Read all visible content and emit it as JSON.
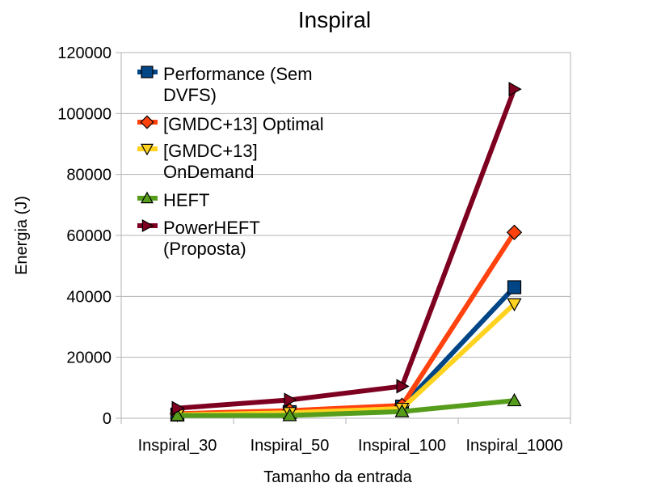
{
  "chart_data": {
    "type": "line",
    "title": "Inspiral",
    "xlabel": "Tamanho da entrada",
    "ylabel": "Energia (J)",
    "categories": [
      "Inspiral_30",
      "Inspiral_50",
      "Inspiral_100",
      "Inspiral_1000"
    ],
    "ylim": [
      0,
      120000
    ],
    "yticks": [
      0,
      20000,
      40000,
      60000,
      80000,
      100000,
      120000
    ],
    "ytick_labels": [
      "0",
      "20000",
      "40000",
      "60000",
      "80000",
      "100000",
      "120000"
    ],
    "grid": "horizontal",
    "legend_position": "top-left",
    "series": [
      {
        "name_lines": [
          "Performance (Sem",
          "DVFS)"
        ],
        "color": "#004586",
        "marker": "square",
        "values": [
          1200,
          2000,
          3800,
          43000
        ]
      },
      {
        "name_lines": [
          "[GMDC+13] Optimal"
        ],
        "color": "#ff420e",
        "marker": "diamond",
        "values": [
          1500,
          2500,
          4200,
          61000
        ]
      },
      {
        "name_lines": [
          "[GMDC+13]",
          "OnDemand"
        ],
        "color": "#ffd320",
        "marker": "triangle-down",
        "values": [
          1100,
          1800,
          3200,
          37500
        ]
      },
      {
        "name_lines": [
          "HEFT"
        ],
        "color": "#579d1c",
        "marker": "triangle-up",
        "values": [
          900,
          900,
          2200,
          5800
        ]
      },
      {
        "name_lines": [
          "PowerHEFT",
          "(Proposta)"
        ],
        "color": "#7e0021",
        "marker": "triangle-right",
        "values": [
          3300,
          6000,
          10500,
          108000
        ]
      }
    ]
  }
}
